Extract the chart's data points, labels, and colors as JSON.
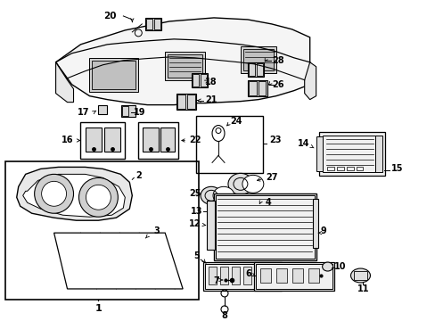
{
  "bg_color": "#ffffff",
  "line_color": "#000000",
  "lw": 0.8,
  "fig_w": 4.89,
  "fig_h": 3.6,
  "dpi": 100
}
